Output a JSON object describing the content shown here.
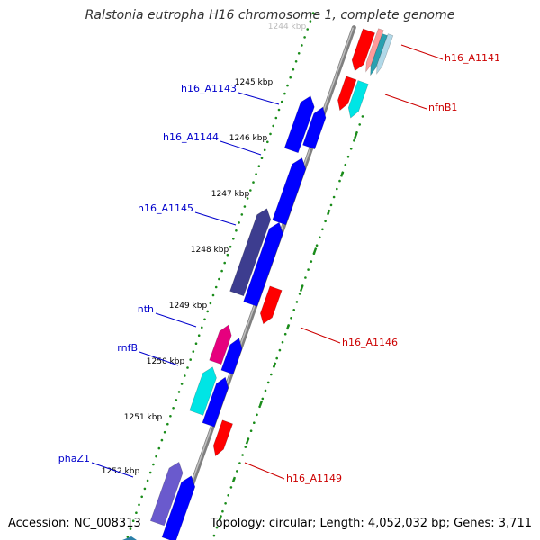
{
  "title": "Ralstonia eutropha H16 chromosome 1, complete genome",
  "footer": {
    "accession": "Accession: NC_008313",
    "summary": "Topology: circular; Length: 4,052,032 bp; Genes: 3,711"
  },
  "colors": {
    "backbone": "#808080",
    "tick": "#1a8c1a",
    "forward_label": "#0000cc",
    "reverse_label": "#cc0000",
    "tick_label": "#000000"
  },
  "ticks": [
    {
      "label": "1244 kbp"
    },
    {
      "label": "1245 kbp"
    },
    {
      "label": "1246 kbp"
    },
    {
      "label": "1247 kbp"
    },
    {
      "label": "1248 kbp"
    },
    {
      "label": "1249 kbp"
    },
    {
      "label": "1250 kbp"
    },
    {
      "label": "1251 kbp"
    },
    {
      "label": "1252 kbp"
    }
  ],
  "forward_labels": [
    {
      "text": "h16_A1143"
    },
    {
      "text": "h16_A1144"
    },
    {
      "text": "h16_A1145"
    },
    {
      "text": "nth"
    },
    {
      "text": "rnfB"
    },
    {
      "text": "phaZ1"
    }
  ],
  "reverse_labels": [
    {
      "text": "h16_A1141"
    },
    {
      "text": "nfnB1"
    },
    {
      "text": "h16_A1146"
    },
    {
      "text": "h16_A1149"
    }
  ],
  "features": [
    {
      "name": "h16_A1143",
      "strand": "forward",
      "color": "#0000ff"
    },
    {
      "name": "h16_A1143-cds",
      "strand": "forward",
      "color": "#0000ff"
    },
    {
      "name": "h16_A1144",
      "strand": "forward",
      "color": "#0000ff"
    },
    {
      "name": "h16_A1145",
      "strand": "forward",
      "color": "#3d3d8f"
    },
    {
      "name": "h16_A1145-cds",
      "strand": "forward",
      "color": "#0000ff"
    },
    {
      "name": "nth",
      "strand": "forward",
      "color": "#e6007e"
    },
    {
      "name": "nth-cds",
      "strand": "forward",
      "color": "#0000ff"
    },
    {
      "name": "rnfB",
      "strand": "forward",
      "color": "#00e5e5"
    },
    {
      "name": "rnfB-cds",
      "strand": "forward",
      "color": "#0000ff"
    },
    {
      "name": "phaZ1",
      "strand": "forward",
      "color": "#6a5acd"
    },
    {
      "name": "phaZ1-cds",
      "strand": "forward",
      "color": "#0000ff"
    },
    {
      "name": "h16_A1141",
      "strand": "reverse",
      "color": "#ff0000"
    },
    {
      "name": "h16_A1141-alt1",
      "strand": "reverse",
      "color": "#ff9a9a"
    },
    {
      "name": "h16_A1141-alt2",
      "strand": "reverse",
      "color": "#2aa0b0"
    },
    {
      "name": "h16_A1141-alt3",
      "strand": "reverse",
      "color": "#b0d8e8"
    },
    {
      "name": "nfnB1-a",
      "strand": "reverse",
      "color": "#ff0000"
    },
    {
      "name": "nfnB1",
      "strand": "reverse",
      "color": "#00e5e5"
    },
    {
      "name": "h16_A1146",
      "strand": "reverse",
      "color": "#ff0000"
    },
    {
      "name": "h16_A1149",
      "strand": "reverse",
      "color": "#ff0000"
    }
  ]
}
